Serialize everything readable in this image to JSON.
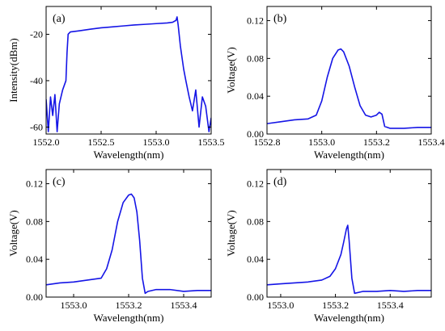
{
  "chart_data": [
    {
      "type": "line",
      "panel_label": "(a)",
      "xlabel": "Wavelength(nm)",
      "ylabel": "Intensity(dBm)",
      "xlim": [
        1552.0,
        1553.5
      ],
      "ylim": [
        -63,
        -8
      ],
      "xticks": [
        1552.0,
        1552.5,
        1553.0,
        1553.5
      ],
      "xtick_labels": [
        "1552.0",
        "1552.5",
        "1553.0",
        "1553.5"
      ],
      "yticks": [
        -60,
        -40,
        -20
      ],
      "ytick_labels": [
        "-60",
        "-40",
        "-20"
      ],
      "grid": false,
      "series": [
        {
          "color": "#1515e6",
          "x": [
            1552.0,
            1552.02,
            1552.04,
            1552.06,
            1552.08,
            1552.1,
            1552.12,
            1552.15,
            1552.18,
            1552.19,
            1552.2,
            1552.22,
            1552.3,
            1552.4,
            1552.5,
            1552.6,
            1552.7,
            1552.8,
            1552.9,
            1553.0,
            1553.1,
            1553.15,
            1553.18,
            1553.19,
            1553.2,
            1553.22,
            1553.25,
            1553.27,
            1553.3,
            1553.33,
            1553.36,
            1553.39,
            1553.42,
            1553.45,
            1553.48,
            1553.5
          ],
          "y": [
            -48,
            -62,
            -47,
            -55,
            -46,
            -62,
            -50,
            -44,
            -40,
            -28,
            -20,
            -19,
            -18.5,
            -17.8,
            -17.2,
            -16.8,
            -16.4,
            -16.0,
            -15.7,
            -15.4,
            -15.1,
            -14.8,
            -14.0,
            -12.5,
            -16.0,
            -25.0,
            -35.0,
            -40.0,
            -47.0,
            -53.0,
            -44.0,
            -60.0,
            -47.0,
            -51.0,
            -62.0,
            -56.0
          ]
        }
      ]
    },
    {
      "type": "line",
      "panel_label": "(b)",
      "xlabel": "Wavelength(nm)",
      "ylabel": "Voltage(V)",
      "xlim": [
        1552.8,
        1553.4
      ],
      "ylim": [
        0,
        0.135
      ],
      "xticks": [
        1552.8,
        1553.0,
        1553.2,
        1553.4
      ],
      "xtick_labels": [
        "1552.8",
        "1553.0",
        "1553.2",
        "1553.4"
      ],
      "yticks": [
        0.0,
        0.04,
        0.08,
        0.12
      ],
      "ytick_labels": [
        "0.00",
        "0.04",
        "0.08",
        "0.12"
      ],
      "grid": false,
      "series": [
        {
          "color": "#1515e6",
          "x": [
            1552.8,
            1552.85,
            1552.9,
            1552.95,
            1552.98,
            1553.0,
            1553.02,
            1553.04,
            1553.06,
            1553.07,
            1553.08,
            1553.1,
            1553.12,
            1553.14,
            1553.16,
            1553.18,
            1553.2,
            1553.21,
            1553.22,
            1553.23,
            1553.25,
            1553.3,
            1553.35,
            1553.4
          ],
          "y": [
            0.011,
            0.013,
            0.015,
            0.016,
            0.02,
            0.035,
            0.06,
            0.08,
            0.089,
            0.09,
            0.087,
            0.072,
            0.05,
            0.03,
            0.02,
            0.018,
            0.02,
            0.023,
            0.021,
            0.008,
            0.006,
            0.006,
            0.007,
            0.007
          ]
        }
      ]
    },
    {
      "type": "line",
      "panel_label": "(c)",
      "xlabel": "Wavelength(nm)",
      "ylabel": "Voltage(V)",
      "xlim": [
        1552.9,
        1553.5
      ],
      "ylim": [
        0,
        0.135
      ],
      "xticks": [
        1553.0,
        1553.2,
        1553.4
      ],
      "xtick_labels": [
        "1553.0",
        "1553.2",
        "1553.4"
      ],
      "yticks": [
        0.0,
        0.04,
        0.08,
        0.12
      ],
      "ytick_labels": [
        "0.00",
        "0.04",
        "0.08",
        "0.12"
      ],
      "grid": false,
      "series": [
        {
          "color": "#1515e6",
          "x": [
            1552.9,
            1552.95,
            1553.0,
            1553.05,
            1553.1,
            1553.12,
            1553.14,
            1553.16,
            1553.18,
            1553.2,
            1553.21,
            1553.22,
            1553.23,
            1553.24,
            1553.25,
            1553.26,
            1553.27,
            1553.3,
            1553.35,
            1553.4,
            1553.45,
            1553.5
          ],
          "y": [
            0.013,
            0.015,
            0.016,
            0.018,
            0.02,
            0.03,
            0.05,
            0.08,
            0.1,
            0.108,
            0.109,
            0.105,
            0.09,
            0.06,
            0.02,
            0.004,
            0.006,
            0.008,
            0.008,
            0.006,
            0.007,
            0.007
          ]
        }
      ]
    },
    {
      "type": "line",
      "panel_label": "(d)",
      "xlabel": "Wavelength(nm)",
      "ylabel": "Voltage(V)",
      "xlim": [
        1552.95,
        1553.55
      ],
      "ylim": [
        0,
        0.135
      ],
      "xticks": [
        1553.0,
        1553.2,
        1553.4
      ],
      "xtick_labels": [
        "1553.0",
        "1553.2",
        "1553.4"
      ],
      "yticks": [
        0.0,
        0.04,
        0.08,
        0.12
      ],
      "ytick_labels": [
        "0.00",
        "0.04",
        "0.08",
        "0.12"
      ],
      "grid": false,
      "series": [
        {
          "color": "#1515e6",
          "x": [
            1552.95,
            1553.0,
            1553.05,
            1553.1,
            1553.15,
            1553.18,
            1553.2,
            1553.22,
            1553.23,
            1553.24,
            1553.245,
            1553.25,
            1553.26,
            1553.27,
            1553.3,
            1553.35,
            1553.4,
            1553.45,
            1553.5,
            1553.55
          ],
          "y": [
            0.013,
            0.014,
            0.015,
            0.016,
            0.018,
            0.022,
            0.03,
            0.045,
            0.058,
            0.072,
            0.076,
            0.06,
            0.02,
            0.004,
            0.006,
            0.006,
            0.007,
            0.006,
            0.007,
            0.007
          ]
        }
      ]
    }
  ]
}
